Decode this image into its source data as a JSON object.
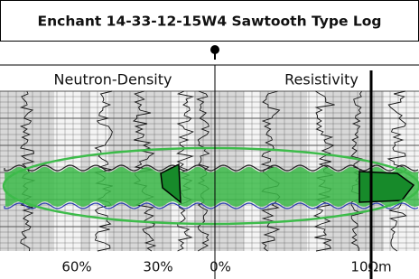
{
  "header": {
    "title": "Enchant 14-33-12-15W4 Sawtooth Type Log"
  },
  "tracks": [
    {
      "label": "Neutron-Density"
    },
    {
      "label": "Resistivity"
    }
  ],
  "scale_labels": [
    "60%",
    "30%",
    "0%",
    "10Ωm"
  ]
}
